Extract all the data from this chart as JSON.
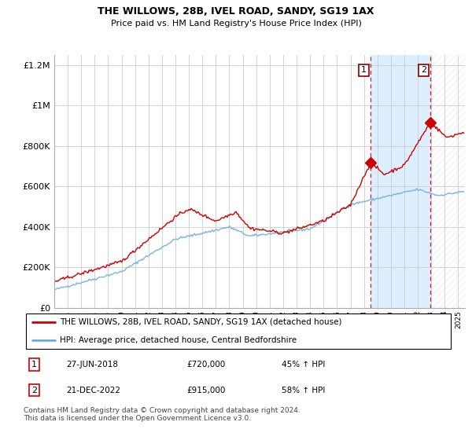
{
  "title": "THE WILLOWS, 28B, IVEL ROAD, SANDY, SG19 1AX",
  "subtitle": "Price paid vs. HM Land Registry's House Price Index (HPI)",
  "property_label": "THE WILLOWS, 28B, IVEL ROAD, SANDY, SG19 1AX (detached house)",
  "hpi_label": "HPI: Average price, detached house, Central Bedfordshire",
  "footnote": "Contains HM Land Registry data © Crown copyright and database right 2024.\nThis data is licensed under the Open Government Licence v3.0.",
  "marker1": {
    "date": "27-JUN-2018",
    "price": "£720,000",
    "change": "45% ↑ HPI"
  },
  "marker2": {
    "date": "21-DEC-2022",
    "price": "£915,000",
    "change": "58% ↑ HPI"
  },
  "property_color": "#cc0000",
  "hpi_color": "#6baed6",
  "marker_region_color": "#ddeeff",
  "marker_line_color": "#cc0000",
  "background_color": "#ffffff",
  "grid_color": "#cccccc",
  "ylim": [
    0,
    1250000
  ],
  "yticks": [
    0,
    200000,
    400000,
    600000,
    800000,
    1000000,
    1200000
  ],
  "marker1_year": 2018.5,
  "marker2_year": 2022.95,
  "marker1_prop_price": 720000,
  "marker2_prop_price": 915000,
  "xmin": 1995.0,
  "xmax": 2025.5
}
